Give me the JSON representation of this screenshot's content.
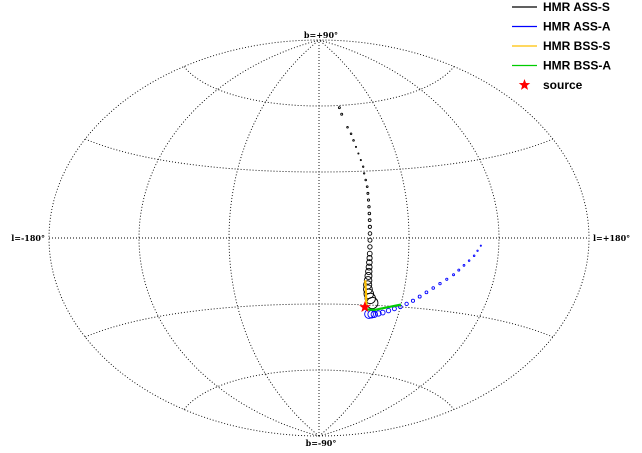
{
  "chart_data": {
    "type": "scatter",
    "projection": "aitoff",
    "title": "",
    "grid": true,
    "legend_position": "top-right",
    "lon_range": [
      -180,
      180
    ],
    "lat_range": [
      -90,
      90
    ],
    "meridians": [
      -120,
      -60,
      0,
      60,
      120
    ],
    "parallels": [
      -60,
      -30,
      0,
      30,
      60
    ],
    "tick_labels": {
      "top": "b=+90°",
      "bottom": "b=-90°",
      "left": "l=-180°",
      "right": "l=+180°"
    },
    "series": [
      {
        "name": "HMR ASS-S",
        "color": "#000000",
        "marker": "circle",
        "points": [
          {
            "l": 22,
            "b": 59,
            "s": 1
          },
          {
            "l": 23,
            "b": 56,
            "s": 1
          },
          {
            "l": 26,
            "b": 50,
            "s": 0.8
          },
          {
            "l": 28,
            "b": 47,
            "s": 0.8
          },
          {
            "l": 29,
            "b": 44,
            "s": 0.8
          },
          {
            "l": 30,
            "b": 41,
            "s": 0.6
          },
          {
            "l": 31,
            "b": 38,
            "s": 0.6
          },
          {
            "l": 32,
            "b": 35,
            "s": 0.6
          },
          {
            "l": 33,
            "b": 32,
            "s": 0.7
          },
          {
            "l": 33,
            "b": 29,
            "s": 0.7
          },
          {
            "l": 33.5,
            "b": 26,
            "s": 0.8
          },
          {
            "l": 34,
            "b": 23,
            "s": 0.9
          },
          {
            "l": 34,
            "b": 20,
            "s": 1
          },
          {
            "l": 34,
            "b": 17,
            "s": 1.1
          },
          {
            "l": 34,
            "b": 14,
            "s": 1.2
          },
          {
            "l": 34,
            "b": 11,
            "s": 1.3
          },
          {
            "l": 34,
            "b": 8,
            "s": 1.4
          },
          {
            "l": 34,
            "b": 5,
            "s": 1.6
          },
          {
            "l": 34,
            "b": 2,
            "s": 1.8
          },
          {
            "l": 34,
            "b": -1,
            "s": 2
          },
          {
            "l": 34,
            "b": -4,
            "s": 2.2
          },
          {
            "l": 34,
            "b": -7,
            "s": 2.4
          },
          {
            "l": 34,
            "b": -9,
            "s": 2.6
          },
          {
            "l": 34,
            "b": -11,
            "s": 2.8
          },
          {
            "l": 34,
            "b": -13,
            "s": 3
          },
          {
            "l": 34,
            "b": -15,
            "s": 3.2
          },
          {
            "l": 34,
            "b": -17,
            "s": 3.5
          },
          {
            "l": 34,
            "b": -19,
            "s": 3.8
          },
          {
            "l": 34,
            "b": -21,
            "s": 4.1
          },
          {
            "l": 34.5,
            "b": -23,
            "s": 4.4
          },
          {
            "l": 35.5,
            "b": -25,
            "s": 4.8
          },
          {
            "l": 37,
            "b": -27,
            "s": 5.2
          },
          {
            "l": 39,
            "b": -29,
            "s": 5.6
          }
        ]
      },
      {
        "name": "HMR ASS-A",
        "color": "#0000ff",
        "marker": "circle",
        "points": [
          {
            "l": 108,
            "b": -3,
            "s": 0.6
          },
          {
            "l": 106,
            "b": -5,
            "s": 0.7
          },
          {
            "l": 104,
            "b": -7,
            "s": 0.8
          },
          {
            "l": 101,
            "b": -9,
            "s": 0.8
          },
          {
            "l": 98,
            "b": -11,
            "s": 0.9
          },
          {
            "l": 95,
            "b": -13,
            "s": 1
          },
          {
            "l": 92,
            "b": -15,
            "s": 1
          },
          {
            "l": 88,
            "b": -17,
            "s": 1.1
          },
          {
            "l": 84,
            "b": -19,
            "s": 1.2
          },
          {
            "l": 80,
            "b": -21,
            "s": 1.3
          },
          {
            "l": 76,
            "b": -23,
            "s": 1.4
          },
          {
            "l": 72,
            "b": -25,
            "s": 1.5
          },
          {
            "l": 68,
            "b": -27,
            "s": 1.6
          },
          {
            "l": 64,
            "b": -28.5,
            "s": 1.7
          },
          {
            "l": 60,
            "b": -30,
            "s": 1.8
          },
          {
            "l": 56,
            "b": -31,
            "s": 2
          },
          {
            "l": 52,
            "b": -32,
            "s": 2.2
          },
          {
            "l": 48,
            "b": -33,
            "s": 2.4
          },
          {
            "l": 45,
            "b": -33.5,
            "s": 2.7
          },
          {
            "l": 42,
            "b": -34,
            "s": 3.2
          },
          {
            "l": 40,
            "b": -34,
            "s": 3.8
          },
          {
            "l": 38,
            "b": -34,
            "s": 4.4
          }
        ]
      },
      {
        "name": "HMR BSS-S",
        "color": "#ffc000",
        "marker": "line",
        "points": [
          {
            "l": 32,
            "b": -19
          },
          {
            "l": 32.5,
            "b": -21
          },
          {
            "l": 33,
            "b": -23
          },
          {
            "l": 33.5,
            "b": -25
          },
          {
            "l": 34,
            "b": -27
          },
          {
            "l": 34.5,
            "b": -29
          },
          {
            "l": 35,
            "b": -31
          }
        ]
      },
      {
        "name": "HMR BSS-A",
        "color": "#00cc00",
        "marker": "line",
        "points": [
          {
            "l": 36,
            "b": -32
          },
          {
            "l": 42,
            "b": -32
          },
          {
            "l": 48,
            "b": -31
          },
          {
            "l": 54,
            "b": -30
          },
          {
            "l": 60,
            "b": -29
          }
        ]
      },
      {
        "name": "source",
        "color": "#ff0000",
        "marker": "star",
        "points": [
          {
            "l": 34,
            "b": -31,
            "s": 6
          }
        ]
      }
    ]
  }
}
